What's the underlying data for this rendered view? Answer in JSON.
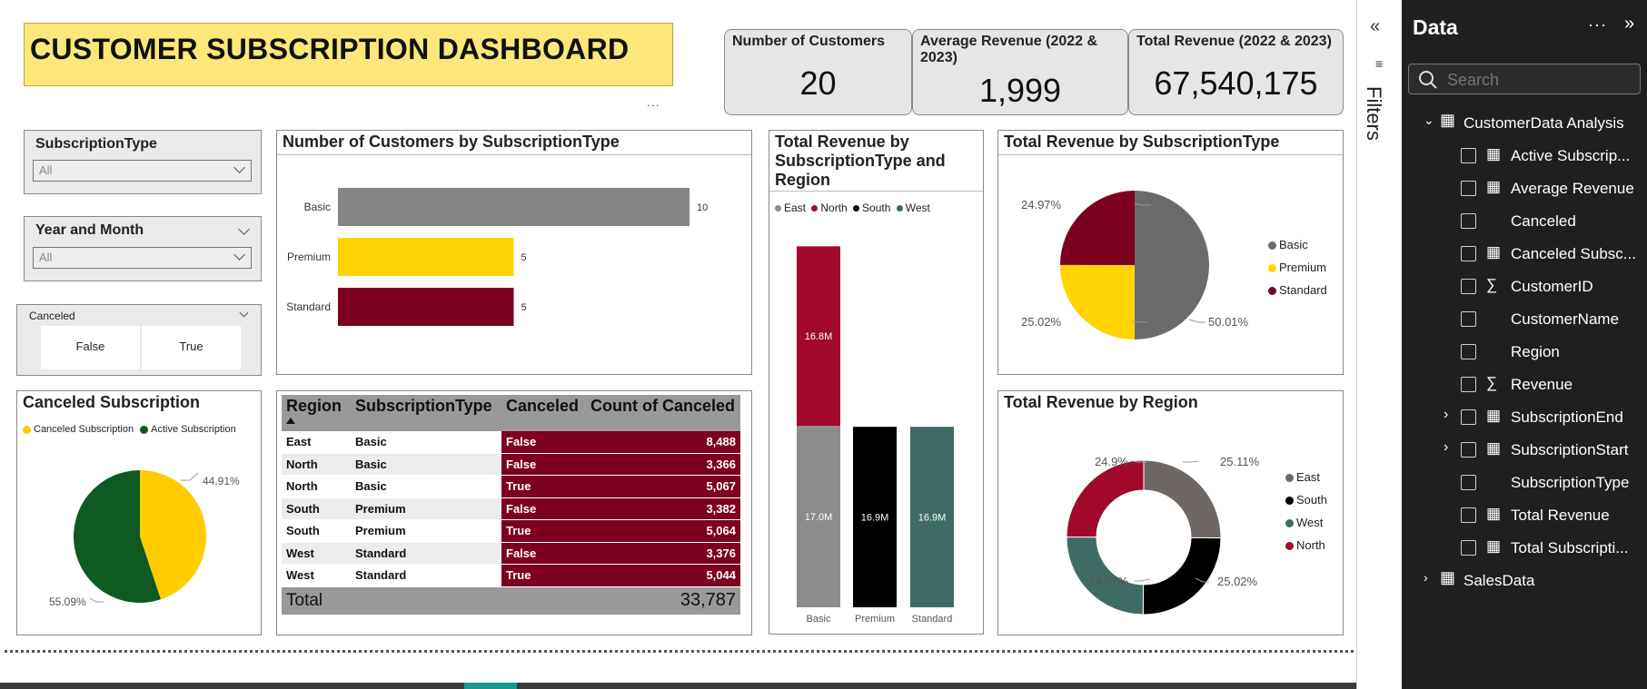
{
  "dashboard": {
    "title": "CUSTOMER SUBSCRIPTION DASHBOARD",
    "more_dots": "..."
  },
  "kpis": [
    {
      "label": "Number of Customers",
      "value": "20"
    },
    {
      "label": "Average Revenue (2022 & 2023)",
      "value": "1,999"
    },
    {
      "label": "Total Revenue (2022 & 2023)",
      "value": "67,540,175"
    }
  ],
  "slicers": {
    "subscription_type": {
      "label": "SubscriptionType",
      "value": "All"
    },
    "year_month": {
      "label": "Year and Month",
      "value": "All"
    },
    "canceled": {
      "label": "Canceled",
      "options": [
        "False",
        "True"
      ]
    }
  },
  "canceled_subscription": {
    "title": "Canceled Subscription",
    "legend": [
      "Canceled Subscription",
      "Active Subscription"
    ],
    "labels": [
      "44.91%",
      "55.09%"
    ],
    "colors": [
      "#ffcc00",
      "#0d5b22"
    ]
  },
  "customers_by_type": {
    "title": "Number of Customers by SubscriptionType"
  },
  "table": {
    "headers": [
      "Region",
      "SubscriptionType",
      "Canceled",
      "Count of Canceled"
    ],
    "rows": [
      [
        "East",
        "Basic",
        "False",
        "8,488"
      ],
      [
        "North",
        "Basic",
        "False",
        "3,366"
      ],
      [
        "North",
        "Basic",
        "True",
        "5,067"
      ],
      [
        "South",
        "Premium",
        "False",
        "3,382"
      ],
      [
        "South",
        "Premium",
        "True",
        "5,064"
      ],
      [
        "West",
        "Standard",
        "False",
        "3,376"
      ],
      [
        "West",
        "Standard",
        "True",
        "5,044"
      ]
    ],
    "total_label": "Total",
    "total_value": "33,787"
  },
  "revenue_type_region": {
    "title_lines": [
      "Total Revenue by",
      "SubscriptionType and",
      "Region"
    ],
    "legend": [
      {
        "name": "East",
        "color": "#8c8c8c"
      },
      {
        "name": "North",
        "color": "#a0092b"
      },
      {
        "name": "South",
        "color": "#000000"
      },
      {
        "name": "West",
        "color": "#3f6b65"
      }
    ]
  },
  "revenue_by_type": {
    "title": "Total Revenue by SubscriptionType",
    "legend": [
      {
        "name": "Basic",
        "color": "#6b6b6b"
      },
      {
        "name": "Premium",
        "color": "#ffd400"
      },
      {
        "name": "Standard",
        "color": "#7d0020"
      }
    ],
    "labels": [
      "24.97%",
      "25.02%",
      "50.01%"
    ]
  },
  "revenue_by_region": {
    "title": "Total Revenue by Region",
    "legend": [
      {
        "name": "East",
        "color": "#6e6763"
      },
      {
        "name": "South",
        "color": "#000000"
      },
      {
        "name": "West",
        "color": "#3f6b65"
      },
      {
        "name": "North",
        "color": "#a0092b"
      }
    ],
    "labels": [
      "24.9%",
      "25.11%",
      "24.97%",
      "25.02%"
    ]
  },
  "chart_data": [
    {
      "type": "bar",
      "title": "Number of Customers by SubscriptionType",
      "orientation": "horizontal",
      "categories": [
        "Basic",
        "Premium",
        "Standard"
      ],
      "values": [
        10,
        5,
        5
      ],
      "colors": [
        "#858585",
        "#ffd400",
        "#7d0020"
      ],
      "xlim": [
        0,
        10
      ]
    },
    {
      "type": "bar",
      "title": "Total Revenue by SubscriptionType and Region",
      "stacked": true,
      "categories": [
        "Basic",
        "Premium",
        "Standard"
      ],
      "series": [
        {
          "name": "East",
          "values": [
            17.0,
            0,
            0
          ],
          "labels": [
            "17.0M",
            "",
            ""
          ]
        },
        {
          "name": "North",
          "values": [
            16.8,
            0,
            0
          ],
          "labels": [
            "16.8M",
            "",
            ""
          ]
        },
        {
          "name": "South",
          "values": [
            0,
            16.9,
            0
          ],
          "labels": [
            "",
            "16.9M",
            ""
          ]
        },
        {
          "name": "West",
          "values": [
            0,
            0,
            16.9
          ],
          "labels": [
            "",
            "",
            "16.9M"
          ]
        }
      ],
      "ylim": [
        0,
        35
      ]
    },
    {
      "type": "pie",
      "title": "Canceled Subscription",
      "categories": [
        "Canceled Subscription",
        "Active Subscription"
      ],
      "values": [
        44.91,
        55.09
      ]
    },
    {
      "type": "pie",
      "title": "Total Revenue by SubscriptionType",
      "categories": [
        "Basic",
        "Premium",
        "Standard"
      ],
      "values": [
        50.01,
        25.02,
        24.97
      ]
    },
    {
      "type": "pie",
      "donut": true,
      "title": "Total Revenue by Region",
      "categories": [
        "East",
        "South",
        "West",
        "North"
      ],
      "values": [
        25.11,
        25.02,
        24.97,
        24.9
      ]
    }
  ],
  "filters_label": "Filters",
  "data_pane": {
    "title": "Data",
    "search_placeholder": "Search",
    "tables": [
      {
        "name": "CustomerData Analysis",
        "expanded": true,
        "fields": [
          {
            "name": "Active Subscrip...",
            "icon": "calc"
          },
          {
            "name": "Average Revenue",
            "icon": "calc"
          },
          {
            "name": "Canceled",
            "icon": "none"
          },
          {
            "name": "Canceled Subsc...",
            "icon": "calc"
          },
          {
            "name": "CustomerID",
            "icon": "sigma"
          },
          {
            "name": "CustomerName",
            "icon": "none"
          },
          {
            "name": "Region",
            "icon": "none"
          },
          {
            "name": "Revenue",
            "icon": "sigma"
          },
          {
            "name": "SubscriptionEnd",
            "icon": "calendar",
            "expandable": true
          },
          {
            "name": "SubscriptionStart",
            "icon": "calendar",
            "expandable": true
          },
          {
            "name": "SubscriptionType",
            "icon": "none"
          },
          {
            "name": "Total Revenue",
            "icon": "calc"
          },
          {
            "name": "Total Subscripti...",
            "icon": "calc"
          }
        ]
      },
      {
        "name": "SalesData",
        "expanded": false,
        "fields": []
      }
    ]
  }
}
